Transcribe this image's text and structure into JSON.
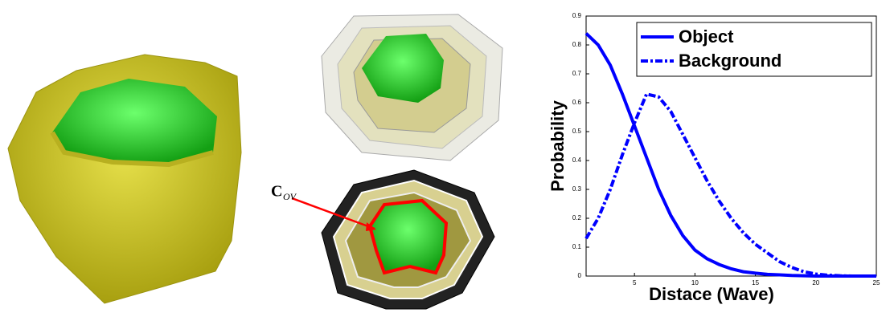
{
  "chart_data": {
    "type": "line",
    "xlabel": "Distace (Wave)",
    "ylabel": "Probability",
    "x": [
      1,
      2,
      3,
      4,
      5,
      6,
      7,
      8,
      9,
      10,
      11,
      12,
      13,
      14,
      15,
      16,
      17,
      18,
      19,
      20,
      21,
      22,
      23,
      24,
      25
    ],
    "series": [
      {
        "name": "Object",
        "color": "#0000ff",
        "dash": "solid",
        "values": [
          0.84,
          0.8,
          0.73,
          0.63,
          0.52,
          0.41,
          0.3,
          0.21,
          0.14,
          0.09,
          0.06,
          0.04,
          0.025,
          0.015,
          0.01,
          0.006,
          0.004,
          0.002,
          0.001,
          0,
          0,
          0,
          0,
          0,
          0
        ]
      },
      {
        "name": "Background",
        "color": "#0000ff",
        "dash": "dashdot",
        "values": [
          0.13,
          0.2,
          0.3,
          0.42,
          0.53,
          0.63,
          0.62,
          0.57,
          0.49,
          0.41,
          0.33,
          0.26,
          0.2,
          0.15,
          0.11,
          0.08,
          0.05,
          0.03,
          0.015,
          0.007,
          0.003,
          0.001,
          0,
          0,
          0
        ]
      }
    ],
    "xlim": [
      1,
      25
    ],
    "xticks": [
      5,
      10,
      15,
      20,
      25
    ],
    "ylim": [
      0,
      0.9
    ],
    "yticks": [
      0,
      0.1,
      0.2,
      0.3,
      0.4,
      0.5,
      0.6,
      0.7,
      0.8,
      0.9
    ],
    "legend": "upper right"
  },
  "annotation": {
    "label": "C",
    "subscript": "OV"
  }
}
